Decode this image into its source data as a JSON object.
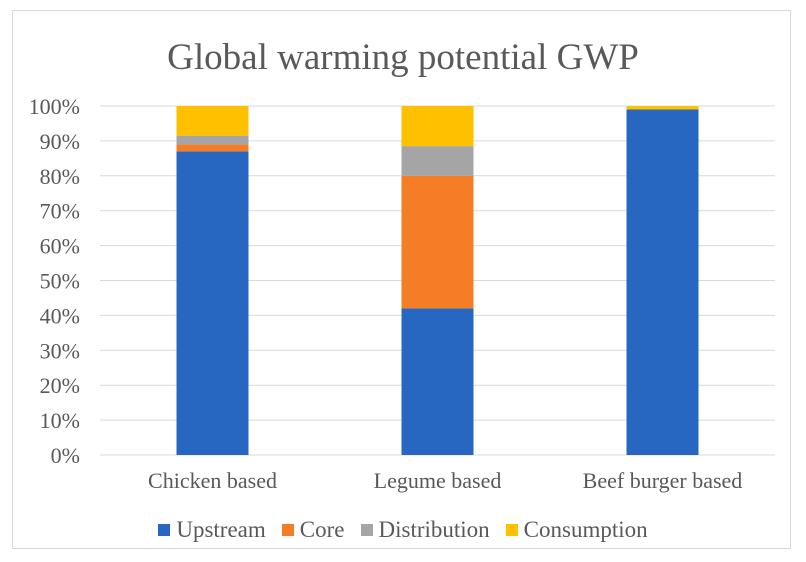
{
  "chart_data": {
    "type": "bar",
    "stacked": true,
    "percent_stacked": true,
    "title": "Global warming potential GWP",
    "xlabel": "",
    "ylabel": "",
    "categories": [
      "Chicken based",
      "Legume based",
      "Beef burger based"
    ],
    "series": [
      {
        "name": "Upstream",
        "color": "#2767c2",
        "values": [
          87,
          42,
          99
        ]
      },
      {
        "name": "Core",
        "color": "#f47d26",
        "values": [
          2,
          38,
          0
        ]
      },
      {
        "name": "Distribution",
        "color": "#a5a5a5",
        "values": [
          2.5,
          8.5,
          0
        ]
      },
      {
        "name": "Consumption",
        "color": "#ffc000",
        "values": [
          8.5,
          11.5,
          1
        ]
      }
    ],
    "ylim": [
      0,
      100
    ],
    "yticks": [
      "0%",
      "10%",
      "20%",
      "30%",
      "40%",
      "50%",
      "60%",
      "70%",
      "80%",
      "90%",
      "100%"
    ],
    "grid": true,
    "legend_position": "bottom"
  }
}
